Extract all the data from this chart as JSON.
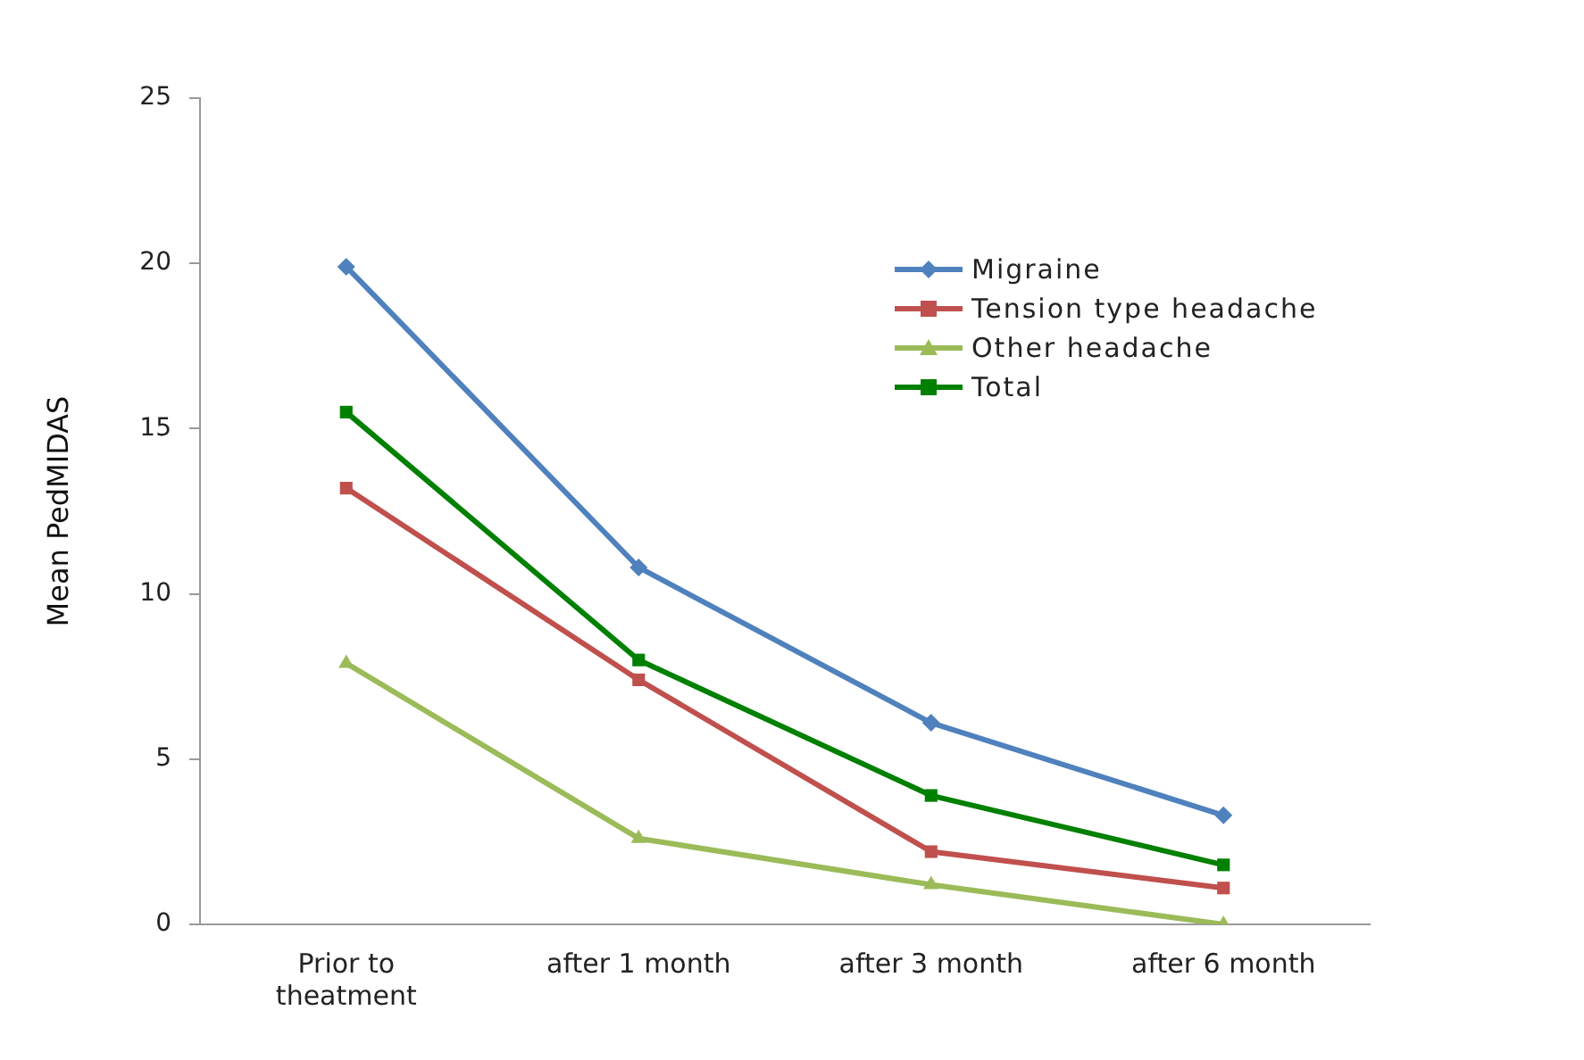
{
  "chart_data": {
    "type": "line",
    "ylabel": "Mean PedMIDAS",
    "categories": [
      "Prior to theatment",
      "after 1 month",
      "after 3 month",
      "after 6 month"
    ],
    "series": [
      {
        "name": "Migraine",
        "color": "#4f81bd",
        "marker": "diamond",
        "values": [
          19.9,
          10.8,
          6.1,
          3.3
        ]
      },
      {
        "name": "Tension type headache",
        "color": "#c0504d",
        "marker": "square",
        "values": [
          13.2,
          7.4,
          2.2,
          1.1
        ]
      },
      {
        "name": "Other headache",
        "color": "#9bbb59",
        "marker": "triangle",
        "values": [
          7.9,
          2.6,
          1.2,
          0
        ]
      },
      {
        "name": "Total",
        "color": "#008000",
        "marker": "square",
        "values": [
          15.5,
          8.0,
          3.9,
          1.8
        ]
      }
    ],
    "ylim": [
      0,
      25
    ],
    "yticks": [
      0,
      5,
      10,
      15,
      20,
      25
    ],
    "grid": false,
    "legend": "top right",
    "line_style": "solid"
  }
}
